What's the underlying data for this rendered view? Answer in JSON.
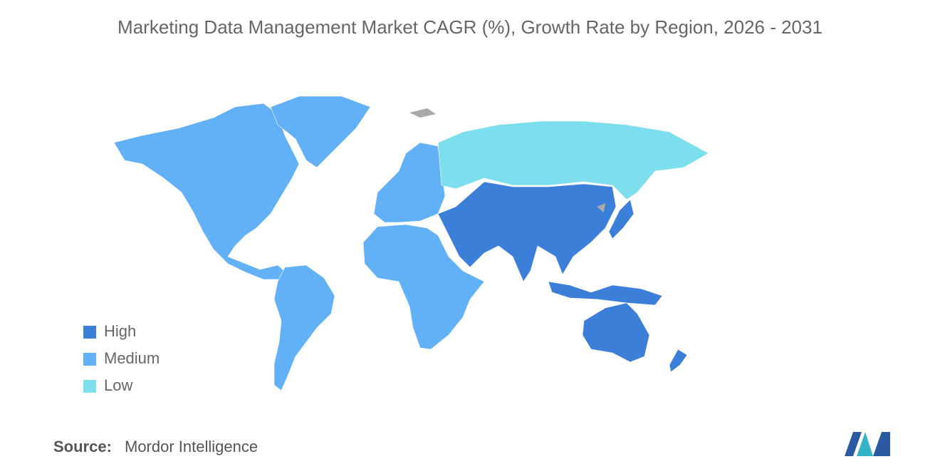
{
  "title": "Marketing Data Management Market CAGR (%), Growth Rate by Region, 2026 - 2031",
  "legend": [
    {
      "label": "High",
      "color": "#3c7fd9"
    },
    {
      "label": "Medium",
      "color": "#62b0f5"
    },
    {
      "label": "Low",
      "color": "#7ddfee"
    }
  ],
  "source": {
    "label": "Source:",
    "text": "Mordor Intelligence"
  }
}
